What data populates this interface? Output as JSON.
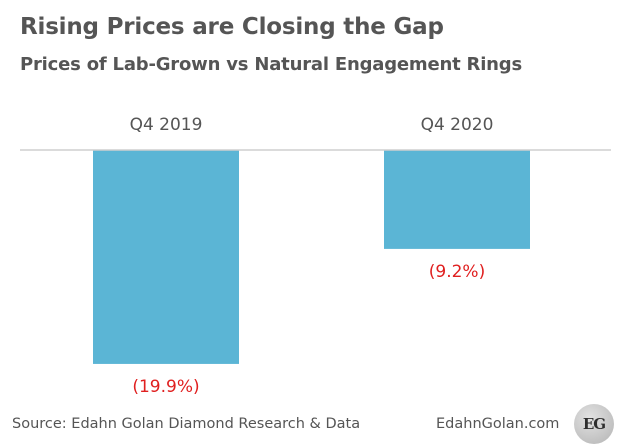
{
  "chart_data": {
    "type": "bar",
    "title": "Rising Prices are Closing the Gap",
    "subtitle": "Prices of Lab-Grown vs Natural Engagement Rings",
    "categories": [
      "Q4 2019",
      "Q4 2020"
    ],
    "values": [
      -19.9,
      -9.2
    ],
    "data_labels": [
      "(19.9%)",
      "(9.2%)"
    ],
    "ylim": [
      -20,
      0
    ],
    "xlabel": "",
    "ylabel": "",
    "grid": false,
    "legend": "none",
    "bar_color": "#5bb5d5",
    "label_color": "#e02020"
  },
  "footer": {
    "source": "Source: Edahn Golan Diamond Research & Data",
    "site": "EdahnGolan.com",
    "logo_text": "EG"
  }
}
